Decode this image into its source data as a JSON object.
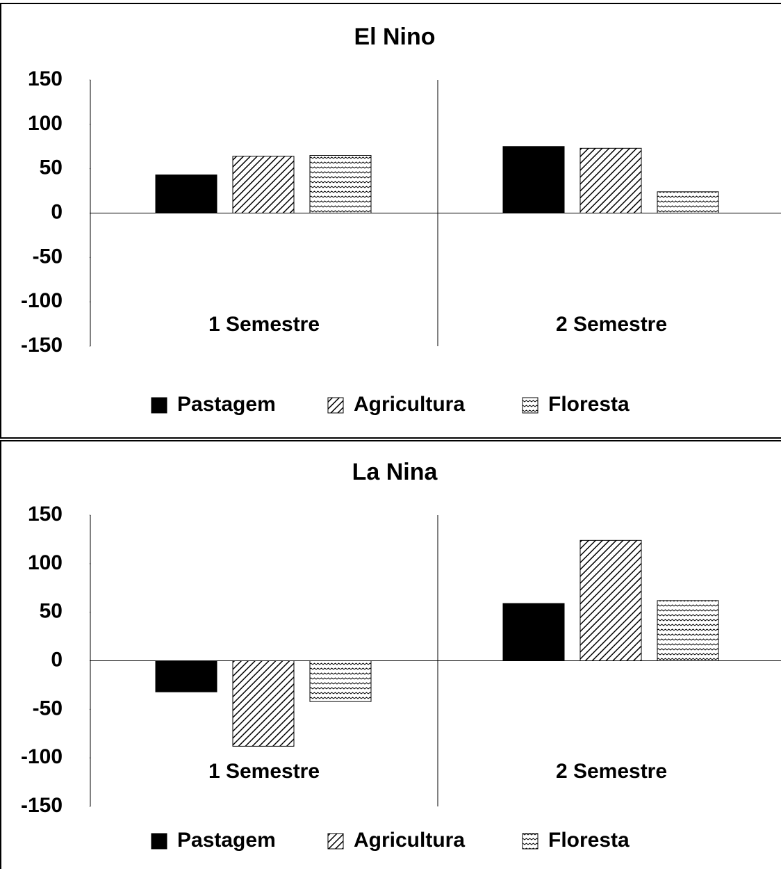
{
  "chart_data": [
    {
      "type": "bar",
      "title": "El Nino",
      "categories": [
        "1 Semestre",
        "2 Semestre"
      ],
      "series": [
        {
          "name": "Pastagem",
          "color": "#000000",
          "pattern": "solid",
          "values": [
            43,
            75
          ]
        },
        {
          "name": "Agricultura",
          "color": "#000000",
          "pattern": "diagonal",
          "values": [
            64,
            73
          ]
        },
        {
          "name": "Floresta",
          "color": "#000000",
          "pattern": "wave",
          "values": [
            65,
            24
          ]
        }
      ],
      "ylim": [
        -150,
        150
      ],
      "yticks": [
        -150,
        -100,
        -50,
        0,
        50,
        100,
        150
      ],
      "legend": "bottom"
    },
    {
      "type": "bar",
      "title": "La Nina",
      "categories": [
        "1 Semestre",
        "2 Semestre"
      ],
      "series": [
        {
          "name": "Pastagem",
          "color": "#000000",
          "pattern": "solid",
          "values": [
            -32,
            59
          ]
        },
        {
          "name": "Agricultura",
          "color": "#000000",
          "pattern": "diagonal",
          "values": [
            -88,
            124
          ]
        },
        {
          "name": "Floresta",
          "color": "#000000",
          "pattern": "wave",
          "values": [
            -42,
            62
          ]
        }
      ],
      "ylim": [
        -150,
        150
      ],
      "yticks": [
        -150,
        -100,
        -50,
        0,
        50,
        100,
        150
      ],
      "legend": "bottom"
    }
  ]
}
